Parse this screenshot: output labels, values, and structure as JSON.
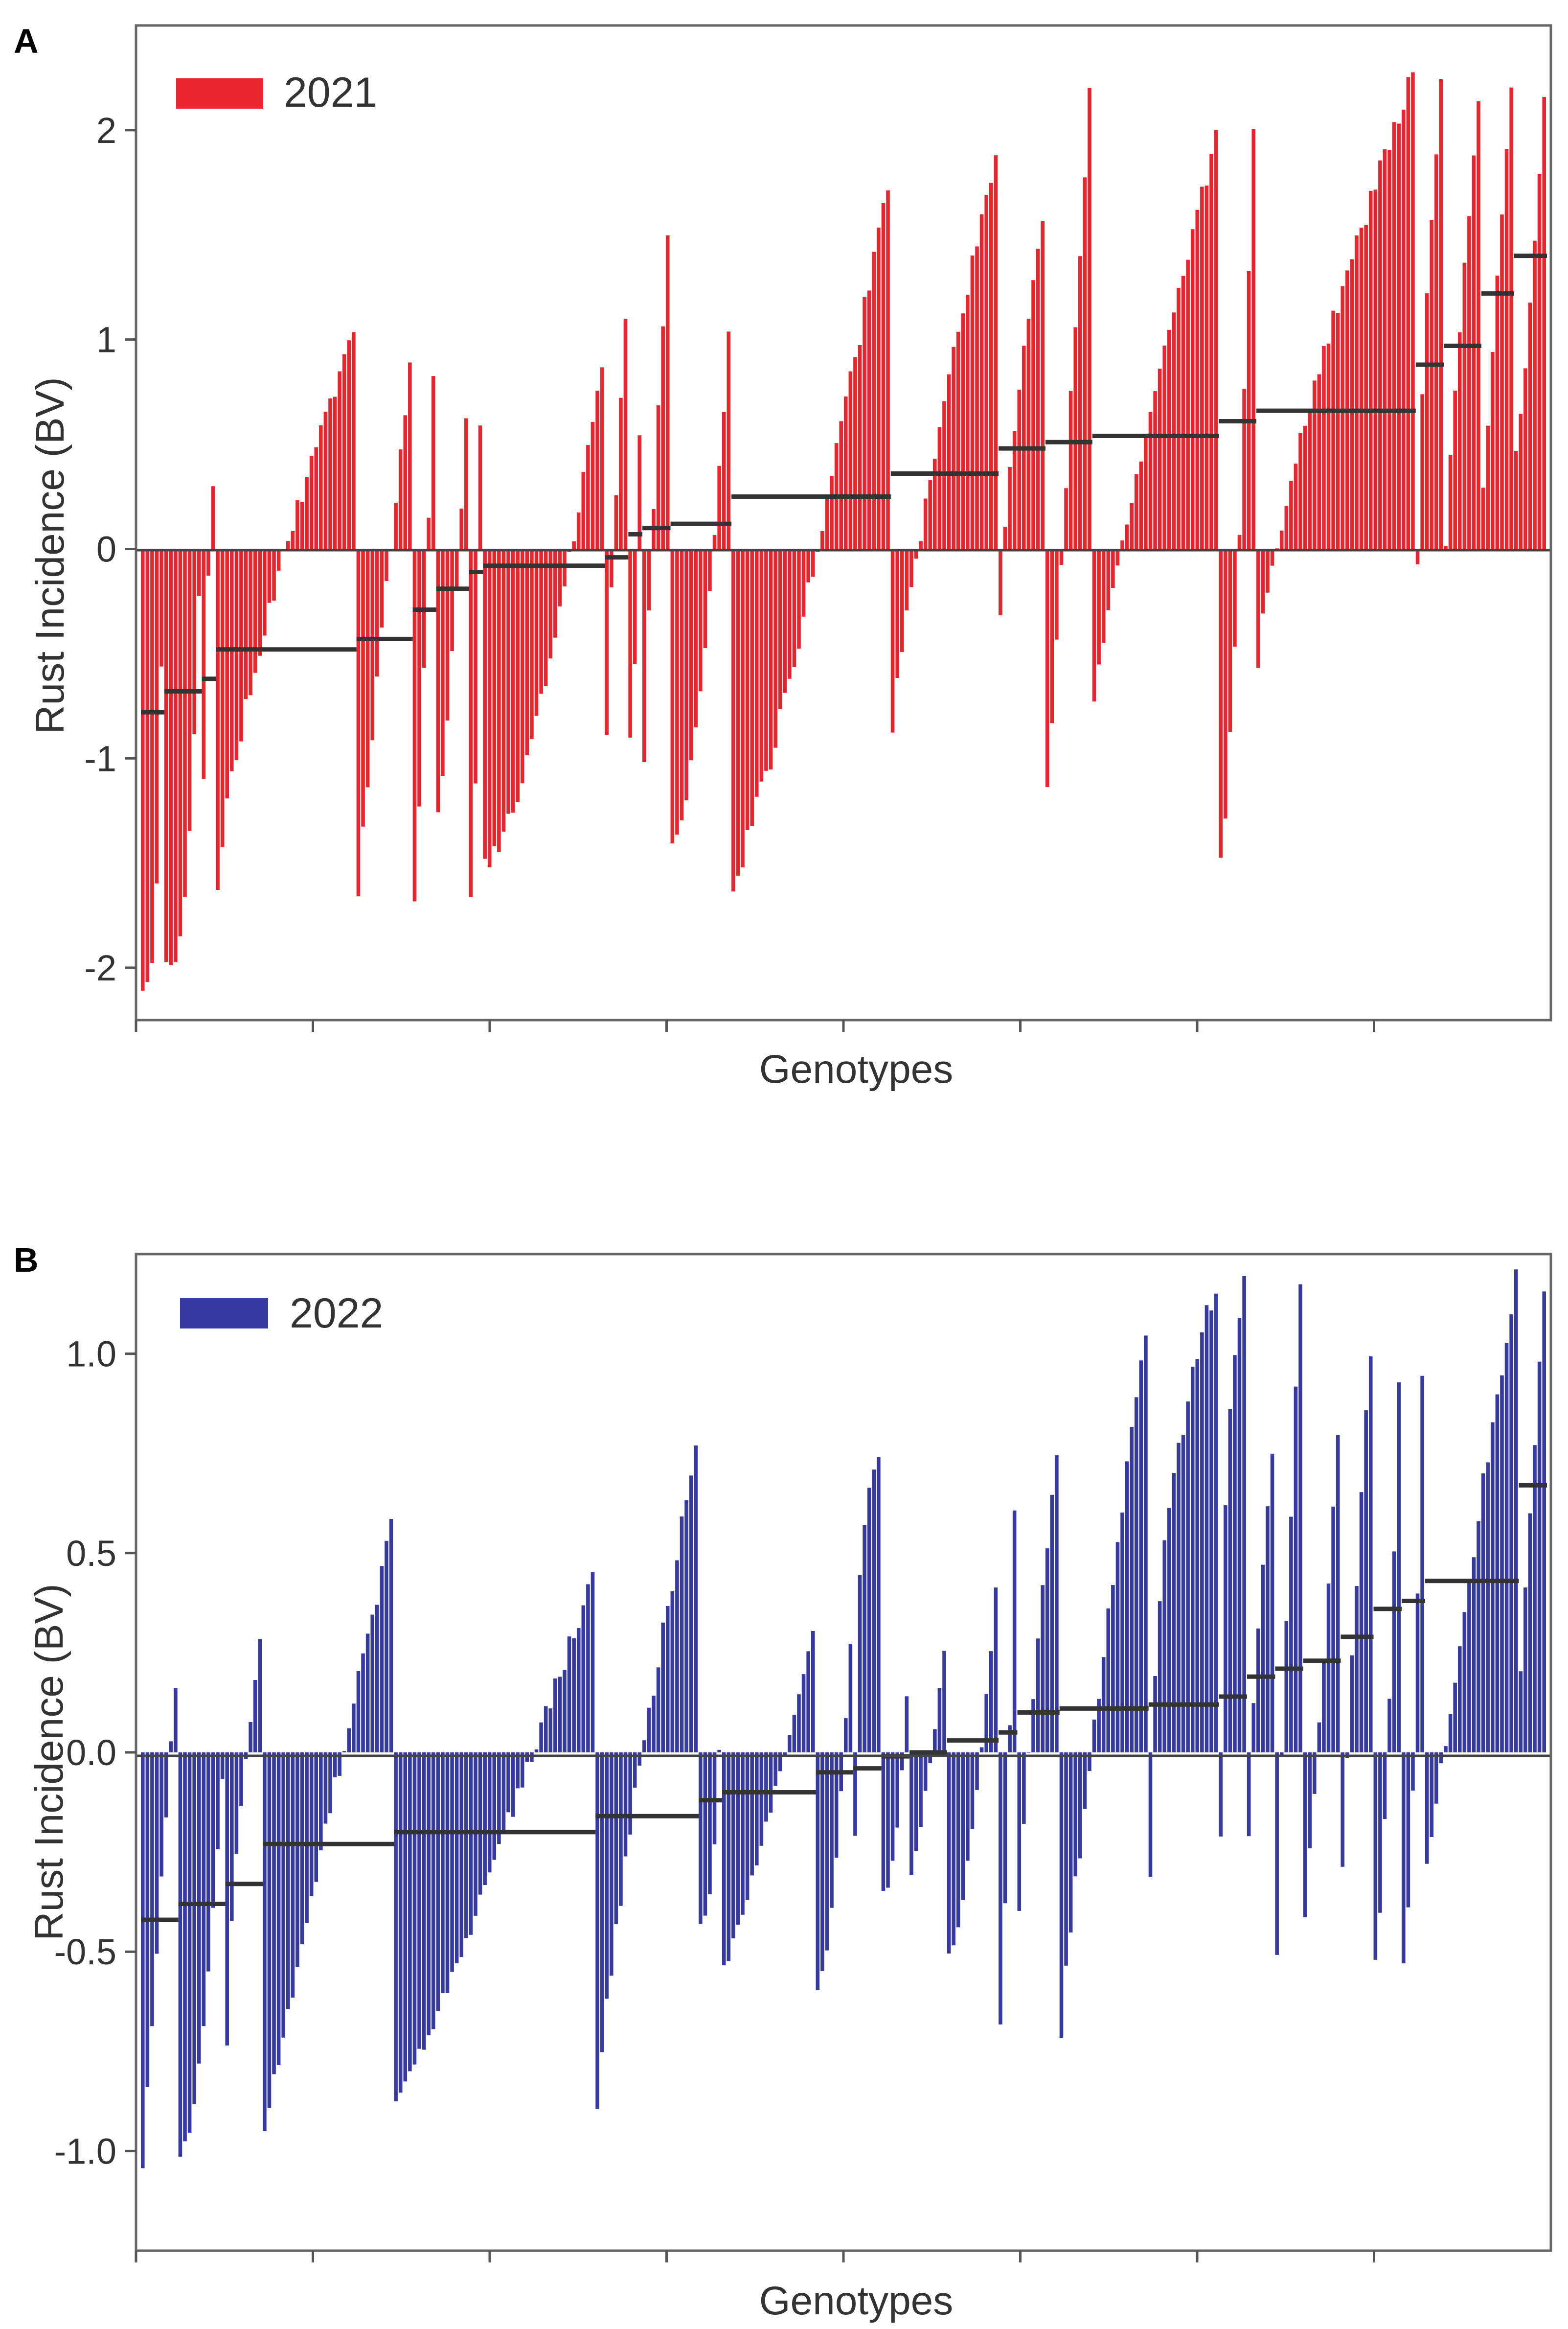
{
  "figure_title": "Rust incidence breeding values by genotype",
  "chart_data": [
    {
      "panel": "A",
      "type": "bar",
      "legend": "2021",
      "bar_color": "#e8242c",
      "mean_color": "#333333",
      "xlabel": "Genotypes",
      "ylabel": "Rust Incidence (BV)",
      "ylim": [
        -2.25,
        2.5
      ],
      "yticks": [
        -2,
        -1,
        0,
        1,
        2
      ],
      "ytick_labels": [
        "-2",
        "-1",
        "0",
        "1",
        "2"
      ],
      "xticks_count": 8,
      "n_genotypes": 300,
      "families": [
        {
          "start": 1,
          "end": 5,
          "mean": -0.78,
          "min": -2.08,
          "max": -0.55
        },
        {
          "start": 6,
          "end": 13,
          "mean": -0.68,
          "min": -1.99,
          "max": -0.25
        },
        {
          "start": 14,
          "end": 16,
          "mean": -0.62,
          "min": -1.1,
          "max": 0.3
        },
        {
          "start": 17,
          "end": 46,
          "mean": -0.48,
          "min": -1.6,
          "max": 1.05
        },
        {
          "start": 47,
          "end": 58,
          "mean": -0.43,
          "min": -1.65,
          "max": 0.9
        },
        {
          "start": 59,
          "end": 63,
          "mean": -0.29,
          "min": -1.68,
          "max": 0.85
        },
        {
          "start": 64,
          "end": 70,
          "mean": -0.19,
          "min": -1.25,
          "max": 0.6
        },
        {
          "start": 71,
          "end": 73,
          "mean": -0.11,
          "min": -1.65,
          "max": 0.6
        },
        {
          "start": 74,
          "end": 99,
          "mean": -0.08,
          "min": -1.52,
          "max": 0.88
        },
        {
          "start": 100,
          "end": 104,
          "mean": -0.04,
          "min": -0.9,
          "max": 1.1
        },
        {
          "start": 105,
          "end": 107,
          "mean": 0.07,
          "min": -0.9,
          "max": 0.55
        },
        {
          "start": 108,
          "end": 113,
          "mean": 0.1,
          "min": -1.0,
          "max": 1.5
        },
        {
          "start": 114,
          "end": 126,
          "mean": 0.12,
          "min": -1.38,
          "max": 1.0
        },
        {
          "start": 127,
          "end": 160,
          "mean": 0.25,
          "min": -1.58,
          "max": 1.75
        },
        {
          "start": 161,
          "end": 183,
          "mean": 0.36,
          "min": -0.88,
          "max": 1.88
        },
        {
          "start": 184,
          "end": 193,
          "mean": 0.48,
          "min": -0.3,
          "max": 1.6
        },
        {
          "start": 194,
          "end": 203,
          "mean": 0.51,
          "min": -1.18,
          "max": 2.2
        },
        {
          "start": 204,
          "end": 230,
          "mean": 0.54,
          "min": -0.7,
          "max": 1.95
        },
        {
          "start": 231,
          "end": 238,
          "mean": 0.61,
          "min": -1.46,
          "max": 2.05
        },
        {
          "start": 239,
          "end": 272,
          "mean": 0.66,
          "min": -0.55,
          "max": 2.27
        },
        {
          "start": 273,
          "end": 278,
          "mean": 0.88,
          "min": -0.05,
          "max": 2.25
        },
        {
          "start": 279,
          "end": 286,
          "mean": 0.97,
          "min": 0.0,
          "max": 2.15
        },
        {
          "start": 287,
          "end": 293,
          "mean": 1.22,
          "min": 0.28,
          "max": 2.2
        },
        {
          "start": 294,
          "end": 300,
          "mean": 1.4,
          "min": 0.45,
          "max": 2.15
        }
      ]
    },
    {
      "panel": "B",
      "type": "bar",
      "legend": "2022",
      "bar_color": "#363aa0",
      "mean_color": "#333333",
      "xlabel": "Genotypes",
      "ylabel": "Rust Incidence (BV)",
      "ylim": [
        -1.25,
        1.25
      ],
      "yticks": [
        -1.0,
        -0.5,
        0.0,
        0.5,
        1.0
      ],
      "ytick_labels": [
        "-1.0",
        "-0.5",
        "0.0",
        "0.5",
        "1.0"
      ],
      "xticks_count": 8,
      "n_genotypes": 300,
      "families": [
        {
          "start": 1,
          "end": 8,
          "mean": -0.42,
          "min": -1.02,
          "max": 0.18
        },
        {
          "start": 9,
          "end": 18,
          "mean": -0.38,
          "min": -1.0,
          "max": -0.05
        },
        {
          "start": 19,
          "end": 26,
          "mean": -0.33,
          "min": -0.72,
          "max": 0.28
        },
        {
          "start": 27,
          "end": 54,
          "mean": -0.23,
          "min": -0.97,
          "max": 0.56
        },
        {
          "start": 55,
          "end": 97,
          "mean": -0.2,
          "min": -0.9,
          "max": 0.44
        },
        {
          "start": 98,
          "end": 119,
          "mean": -0.16,
          "min": -0.88,
          "max": 0.75
        },
        {
          "start": 120,
          "end": 124,
          "mean": -0.12,
          "min": -0.43,
          "max": 0.0
        },
        {
          "start": 125,
          "end": 144,
          "mean": -0.1,
          "min": -0.55,
          "max": 0.3
        },
        {
          "start": 145,
          "end": 152,
          "mean": -0.05,
          "min": -0.6,
          "max": 0.28
        },
        {
          "start": 153,
          "end": 158,
          "mean": -0.04,
          "min": -0.2,
          "max": 0.76
        },
        {
          "start": 159,
          "end": 164,
          "mean": -0.01,
          "min": -0.35,
          "max": 0.15
        },
        {
          "start": 165,
          "end": 172,
          "mean": 0.0,
          "min": -0.3,
          "max": 0.25
        },
        {
          "start": 173,
          "end": 183,
          "mean": 0.03,
          "min": -0.52,
          "max": 0.4
        },
        {
          "start": 184,
          "end": 187,
          "mean": 0.05,
          "min": -0.69,
          "max": 0.6
        },
        {
          "start": 188,
          "end": 196,
          "mean": 0.1,
          "min": -0.4,
          "max": 0.75
        },
        {
          "start": 197,
          "end": 215,
          "mean": 0.11,
          "min": -0.71,
          "max": 1.05
        },
        {
          "start": 216,
          "end": 230,
          "mean": 0.12,
          "min": -0.3,
          "max": 1.18
        },
        {
          "start": 231,
          "end": 236,
          "mean": 0.14,
          "min": -0.2,
          "max": 1.2
        },
        {
          "start": 237,
          "end": 242,
          "mean": 0.19,
          "min": -0.2,
          "max": 0.75
        },
        {
          "start": 243,
          "end": 248,
          "mean": 0.21,
          "min": -0.52,
          "max": 1.16
        },
        {
          "start": 249,
          "end": 256,
          "mean": 0.23,
          "min": -0.4,
          "max": 0.8
        },
        {
          "start": 257,
          "end": 263,
          "mean": 0.29,
          "min": -0.31,
          "max": 1.02
        },
        {
          "start": 264,
          "end": 269,
          "mean": 0.36,
          "min": -0.5,
          "max": 0.92
        },
        {
          "start": 270,
          "end": 274,
          "mean": 0.38,
          "min": -0.55,
          "max": 0.95
        },
        {
          "start": 275,
          "end": 294,
          "mean": 0.43,
          "min": -0.3,
          "max": 1.2
        },
        {
          "start": 295,
          "end": 300,
          "mean": 0.67,
          "min": 0.2,
          "max": 1.15
        }
      ]
    }
  ]
}
